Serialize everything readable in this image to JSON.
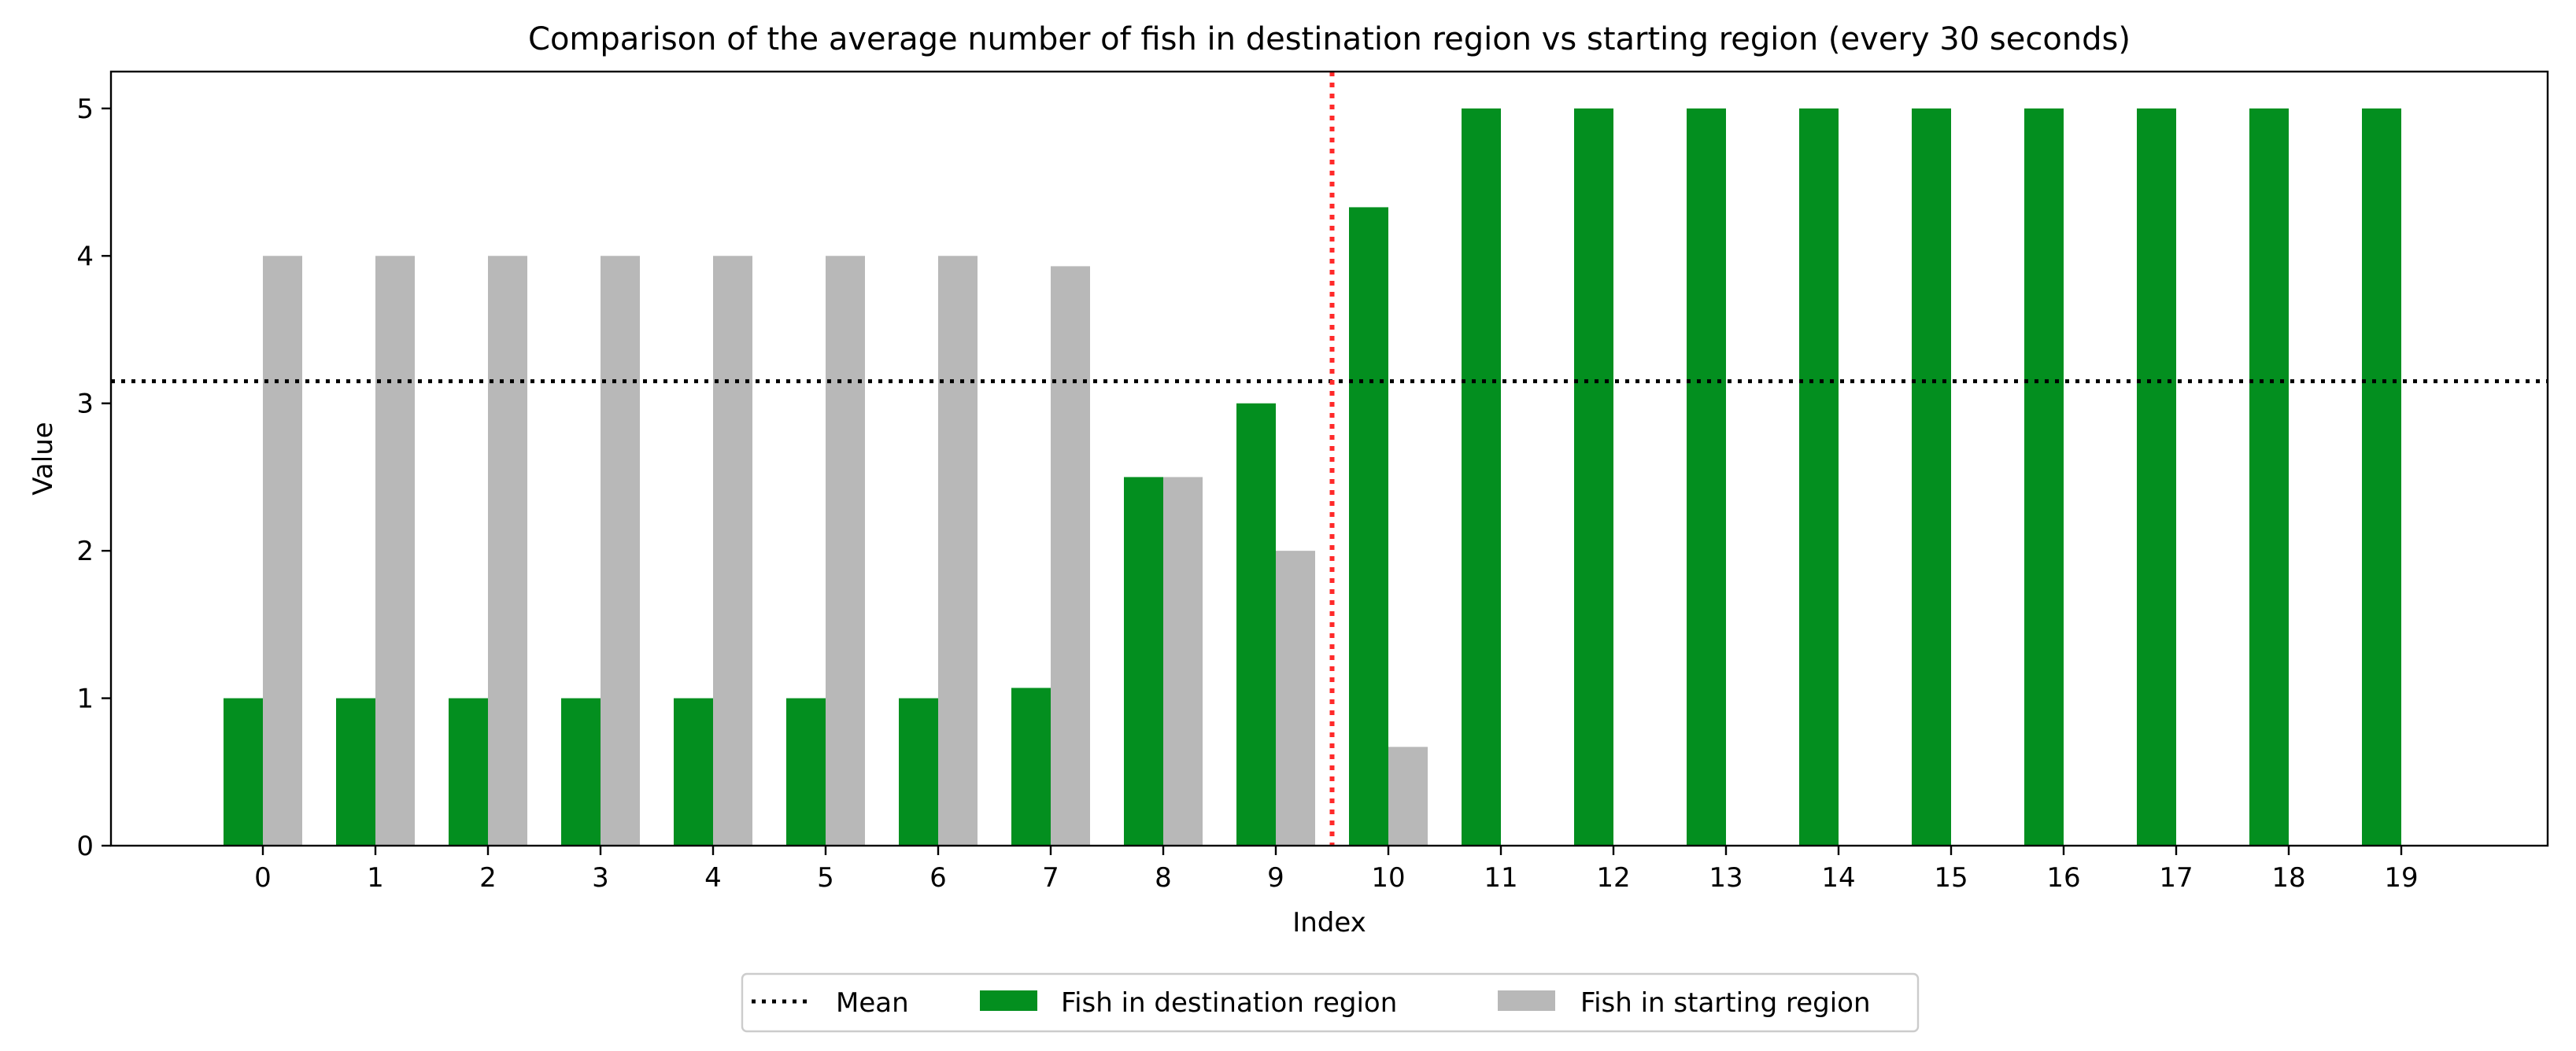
{
  "chart_data": {
    "type": "bar",
    "title": "Comparison of the average number of fish in destination region vs starting region (every 30 seconds)",
    "xlabel": "Index",
    "ylabel": "Value",
    "categories": [
      "0",
      "1",
      "2",
      "3",
      "4",
      "5",
      "6",
      "7",
      "8",
      "9",
      "10",
      "11",
      "12",
      "13",
      "14",
      "15",
      "16",
      "17",
      "18",
      "19"
    ],
    "series": [
      {
        "name": "Fish in destination region",
        "color": "#038f1f",
        "values": [
          1,
          1,
          1,
          1,
          1,
          1,
          1,
          1.07,
          2.5,
          3,
          4.33,
          5,
          5,
          5,
          5,
          5,
          5,
          5,
          5,
          5
        ]
      },
      {
        "name": "Fish in starting region",
        "color": "#b8b8b8",
        "values": [
          4,
          4,
          4,
          4,
          4,
          4,
          4,
          3.93,
          2.5,
          2,
          0.67,
          0,
          0,
          0,
          0,
          0,
          0,
          0,
          0,
          0
        ]
      }
    ],
    "mean_line": {
      "name": "Mean",
      "value": 3.15,
      "color": "#000000"
    },
    "split_line": {
      "x": 9.5,
      "color": "#ff2a2a"
    },
    "ylim": [
      0,
      5.25
    ],
    "yticks": [
      0,
      1,
      2,
      3,
      4,
      5
    ],
    "grid": false,
    "legend_position": "bottom-center"
  }
}
